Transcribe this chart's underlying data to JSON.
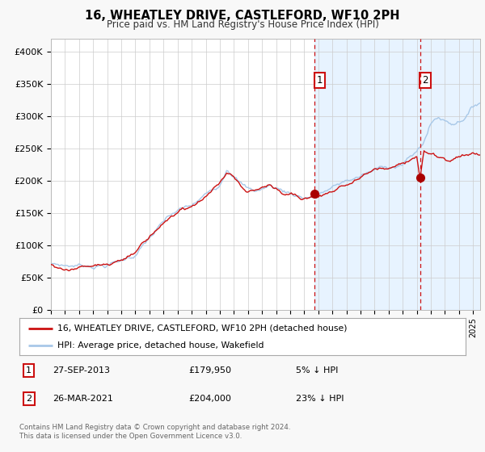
{
  "title": "16, WHEATLEY DRIVE, CASTLEFORD, WF10 2PH",
  "subtitle": "Price paid vs. HM Land Registry's House Price Index (HPI)",
  "ylabel_ticks": [
    "£0",
    "£50K",
    "£100K",
    "£150K",
    "£200K",
    "£250K",
    "£300K",
    "£350K",
    "£400K"
  ],
  "ytick_values": [
    0,
    50000,
    100000,
    150000,
    200000,
    250000,
    300000,
    350000,
    400000
  ],
  "ylim": [
    0,
    420000
  ],
  "xlim_start": 1995.0,
  "xlim_end": 2025.5,
  "hpi_color": "#a8c8e8",
  "price_color": "#cc1111",
  "sale1_date": 2013.74,
  "sale1_price": 179950,
  "sale2_date": 2021.23,
  "sale2_price": 204000,
  "vline_color": "#cc1111",
  "shade_color": "#ddeeff",
  "legend_label1": "16, WHEATLEY DRIVE, CASTLEFORD, WF10 2PH (detached house)",
  "legend_label2": "HPI: Average price, detached house, Wakefield",
  "table_row1": [
    "1",
    "27-SEP-2013",
    "£179,950",
    "5% ↓ HPI"
  ],
  "table_row2": [
    "2",
    "26-MAR-2021",
    "£204,000",
    "23% ↓ HPI"
  ],
  "footer": "Contains HM Land Registry data © Crown copyright and database right 2024.\nThis data is licensed under the Open Government Licence v3.0.",
  "background_color": "#f8f8f8",
  "plot_bg_color": "#ffffff",
  "grid_color": "#cccccc",
  "hpi_milestones": {
    "1995.0": 72000,
    "1996.0": 70000,
    "1997.0": 71000,
    "1998.0": 73000,
    "1999.0": 76000,
    "2000.0": 82000,
    "2001.0": 93000,
    "2002.0": 118000,
    "2003.0": 140000,
    "2004.0": 155000,
    "2005.0": 160000,
    "2006.0": 175000,
    "2007.0": 195000,
    "2007.5": 225000,
    "2008.0": 218000,
    "2008.5": 205000,
    "2009.0": 195000,
    "2009.5": 192000,
    "2010.0": 195000,
    "2010.5": 200000,
    "2011.0": 197000,
    "2011.5": 193000,
    "2012.0": 190000,
    "2012.5": 188000,
    "2013.0": 185000,
    "2013.74": 190000,
    "2014.0": 192000,
    "2015.0": 200000,
    "2016.0": 210000,
    "2017.0": 218000,
    "2018.0": 225000,
    "2019.0": 232000,
    "2020.0": 238000,
    "2021.0": 255000,
    "2021.5": 272000,
    "2022.0": 300000,
    "2022.5": 310000,
    "2023.0": 305000,
    "2023.5": 302000,
    "2024.0": 308000,
    "2024.5": 318000,
    "2025.0": 330000,
    "2025.5": 340000
  },
  "price_milestones": {
    "1995.0": 70000,
    "1996.0": 67000,
    "1997.0": 68000,
    "1998.0": 71000,
    "1999.0": 74000,
    "2000.0": 79000,
    "2001.0": 90000,
    "2002.0": 113000,
    "2003.0": 136000,
    "2004.0": 151000,
    "2005.0": 157000,
    "2006.0": 171000,
    "2007.0": 192000,
    "2007.5": 208000,
    "2008.0": 203000,
    "2008.5": 190000,
    "2009.0": 180000,
    "2009.5": 178000,
    "2010.0": 183000,
    "2010.5": 188000,
    "2011.0": 184000,
    "2011.5": 180000,
    "2012.0": 178000,
    "2012.5": 176000,
    "2013.0": 173000,
    "2013.74": 179950,
    "2014.0": 181000,
    "2015.0": 190000,
    "2016.0": 200000,
    "2017.0": 210000,
    "2018.0": 216000,
    "2019.0": 221000,
    "2020.0": 225000,
    "2021.0": 240000,
    "2021.23": 204000,
    "2021.5": 248000,
    "2022.0": 248000,
    "2022.5": 242000,
    "2023.0": 238000,
    "2023.5": 240000,
    "2024.0": 244000,
    "2024.5": 248000,
    "2025.0": 250000,
    "2025.5": 248000
  }
}
